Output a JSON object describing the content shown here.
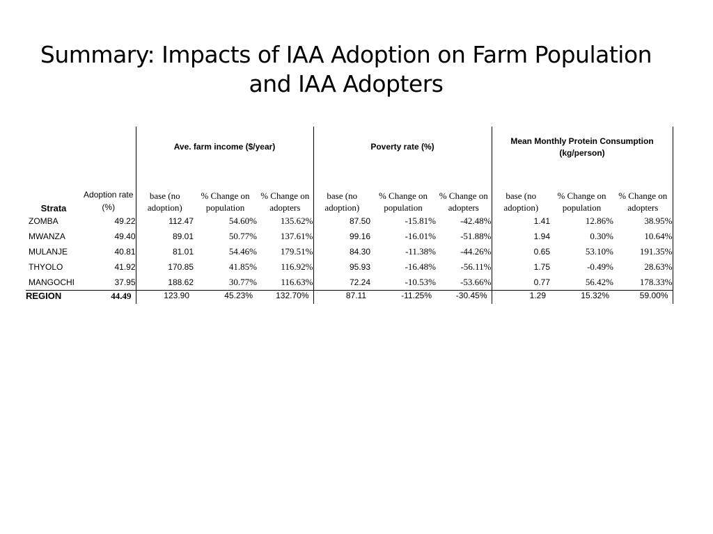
{
  "title": {
    "line1": "Summary: Impacts of IAA Adoption on Farm Population",
    "line2": "and IAA Adopters"
  },
  "table": {
    "groups": {
      "income": "Ave. farm income ($/year)",
      "poverty": "Poverty rate (%)",
      "protein": "Mean Monthly Protein Consumption (kg/person)"
    },
    "headers": {
      "strata": "Strata",
      "adoption": "Adoption rate (%)",
      "base": "base (no adoption)",
      "pct_pop": "% Change on population",
      "pct_adopt": "% Change on adopters"
    },
    "rows": [
      {
        "name": "ZOMBA",
        "adoption": "49.22",
        "inc_base": "112.47",
        "inc_pop": "54.60%",
        "inc_adopt": "135.62%",
        "pov_base": "87.50",
        "pov_pop": "-15.81%",
        "pov_adopt": "-42.48%",
        "pro_base": "1.41",
        "pro_pop": "12.86%",
        "pro_adopt": "38.95%"
      },
      {
        "name": "MWANZA",
        "adoption": "49.40",
        "inc_base": "89.01",
        "inc_pop": "50.77%",
        "inc_adopt": "137.61%",
        "pov_base": "99.16",
        "pov_pop": "-16.01%",
        "pov_adopt": "-51.88%",
        "pro_base": "1.94",
        "pro_pop": "0.30%",
        "pro_adopt": "10.64%"
      },
      {
        "name": "MULANJE",
        "adoption": "40.81",
        "inc_base": "81.01",
        "inc_pop": "54.46%",
        "inc_adopt": "179.51%",
        "pov_base": "84.30",
        "pov_pop": "-11.38%",
        "pov_adopt": "-44.26%",
        "pro_base": "0.65",
        "pro_pop": "53.10%",
        "pro_adopt": "191.35%"
      },
      {
        "name": "THYOLO",
        "adoption": "41.92",
        "inc_base": "170.85",
        "inc_pop": "41.85%",
        "inc_adopt": "116.92%",
        "pov_base": "95.93",
        "pov_pop": "-16.48%",
        "pov_adopt": "-56.11%",
        "pro_base": "1.75",
        "pro_pop": "-0.49%",
        "pro_adopt": "28.63%"
      },
      {
        "name": "MANGOCHI",
        "adoption": "37.95",
        "inc_base": "188.62",
        "inc_pop": "30.77%",
        "inc_adopt": "116.63%",
        "pov_base": "72.24",
        "pov_pop": "-10.53%",
        "pov_adopt": "-53.66%",
        "pro_base": "0.77",
        "pro_pop": "56.42%",
        "pro_adopt": "178.33%"
      }
    ],
    "region": {
      "name": "REGION",
      "adoption": "44.49",
      "inc_base": "123.90",
      "inc_pop": "45.23%",
      "inc_adopt": "132.70%",
      "pov_base": "87.11",
      "pov_pop": "-11.25%",
      "pov_adopt": "-30.45%",
      "pro_base": "1.29",
      "pro_pop": "15.32%",
      "pro_adopt": "59.00%"
    }
  }
}
